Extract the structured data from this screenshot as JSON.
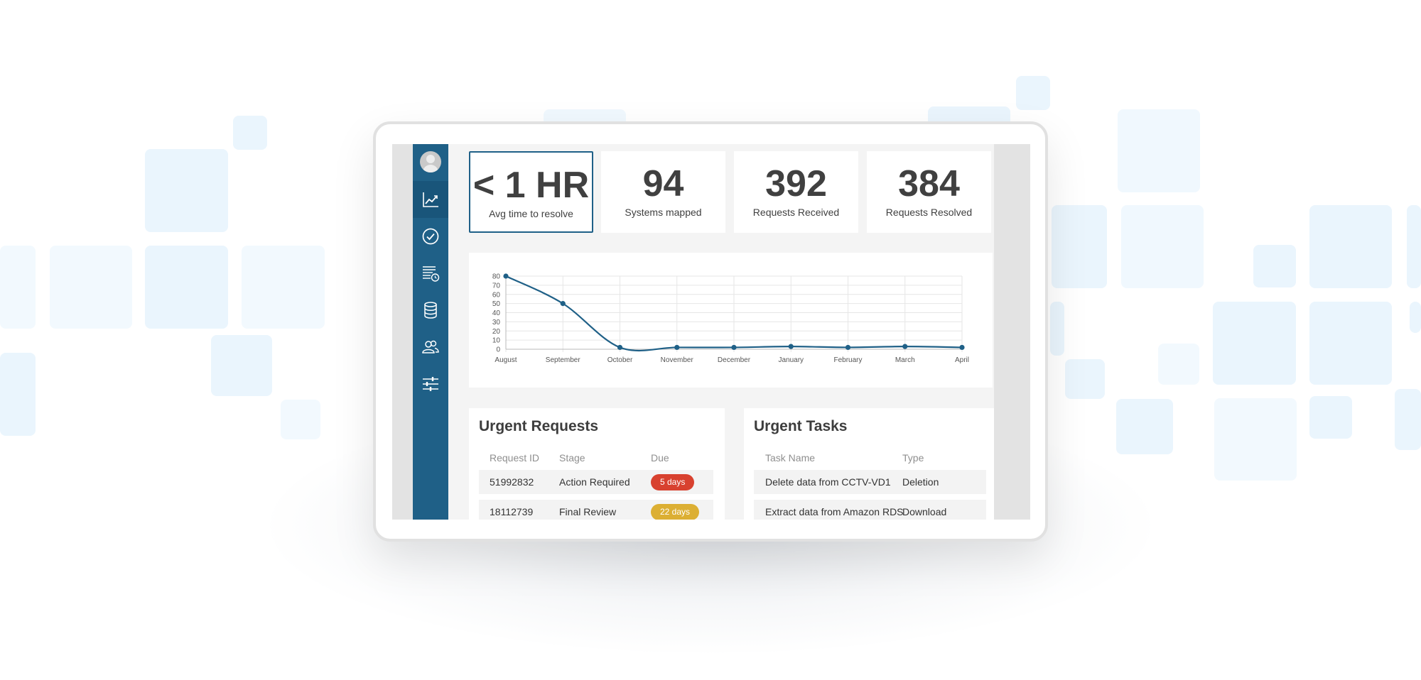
{
  "sidebar": {
    "avatar_icon": "user-avatar-icon",
    "items": [
      {
        "id": "analytics",
        "icon": "line-chart-icon",
        "active": true
      },
      {
        "id": "tasks",
        "icon": "check-circle-icon",
        "active": false
      },
      {
        "id": "reports",
        "icon": "list-clock-icon",
        "active": false
      },
      {
        "id": "data",
        "icon": "database-icon",
        "active": false
      },
      {
        "id": "users",
        "icon": "users-icon",
        "active": false
      },
      {
        "id": "settings",
        "icon": "sliders-icon",
        "active": false
      }
    ]
  },
  "stats": [
    {
      "value": "< 1 HR",
      "label": "Avg time to resolve",
      "selected": true
    },
    {
      "value": "94",
      "label": "Systems mapped",
      "selected": false
    },
    {
      "value": "392",
      "label": "Requests Received",
      "selected": false
    },
    {
      "value": "384",
      "label": "Requests Resolved",
      "selected": false
    }
  ],
  "chart_data": {
    "type": "line",
    "categories": [
      "August",
      "September",
      "October",
      "November",
      "December",
      "January",
      "February",
      "March",
      "April"
    ],
    "series": [
      {
        "values": [
          80,
          50,
          2,
          2,
          2,
          3,
          2,
          3,
          2
        ]
      }
    ],
    "yticks": [
      0,
      10,
      20,
      30,
      40,
      50,
      60,
      70,
      80
    ],
    "ylim": [
      0,
      80
    ],
    "grid": true,
    "line_color": "#1f6087"
  },
  "urgent_requests": {
    "title": "Urgent Requests",
    "columns": [
      "Request ID",
      "Stage",
      "Due"
    ],
    "rows": [
      {
        "id": "51992832",
        "stage": "Action Required",
        "due": "5 days",
        "due_color": "#d8412f"
      },
      {
        "id": "18112739",
        "stage": "Final Review",
        "due": "22 days",
        "due_color": "#dcaf33"
      }
    ]
  },
  "urgent_tasks": {
    "title": "Urgent Tasks",
    "columns": [
      "Task Name",
      "Type"
    ],
    "rows": [
      {
        "name": "Delete data from CCTV-VD1",
        "type": "Deletion"
      },
      {
        "name": "Extract data from Amazon RDS",
        "type": "Download"
      }
    ]
  }
}
